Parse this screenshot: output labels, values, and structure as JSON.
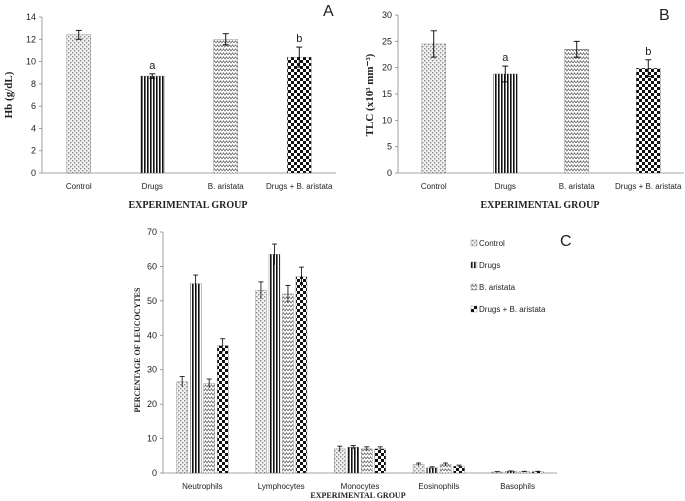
{
  "chart_data": [
    {
      "id": "A",
      "type": "bar",
      "panel_label": "A",
      "ylabel": "Hb (g/dL)",
      "xlabel": "EXPERIMENTAL GROUP",
      "ylim": [
        0,
        14
      ],
      "ytick_step": 2,
      "categories": [
        "Control",
        "Drugs",
        "B. aristata",
        "Drugs + B. aristata"
      ],
      "values": [
        12.4,
        8.7,
        12.0,
        10.4
      ],
      "errors": [
        0.4,
        0.2,
        0.5,
        0.9
      ],
      "significance": [
        "",
        "a",
        "",
        "b"
      ]
    },
    {
      "id": "B",
      "type": "bar",
      "panel_label": "B",
      "ylabel": "TLC (x10³ mm⁻³)",
      "xlabel": "EXPERIMENTAL GROUP",
      "ylim": [
        0,
        30
      ],
      "ytick_step": 5,
      "categories": [
        "Control",
        "Drugs",
        "B. aristata",
        "Drugs + B. aristata"
      ],
      "values": [
        24.5,
        18.8,
        23.5,
        19.9
      ],
      "errors": [
        2.5,
        1.5,
        1.5,
        1.6
      ],
      "significance": [
        "",
        "a",
        "",
        "b"
      ]
    },
    {
      "id": "C",
      "type": "bar",
      "panel_label": "C",
      "ylabel": "PERCENTAGE OF LEUCOCYTES",
      "xlabel": "EXPERIMENTAL GROUP",
      "ylim": [
        0,
        70
      ],
      "ytick_step": 10,
      "categories": [
        "Neutrophils",
        "Lymphocytes",
        "Monocytes",
        "Eosinophils",
        "Basophils"
      ],
      "legend_position": "top-right",
      "series": [
        {
          "name": "Control",
          "values": [
            26.5,
            53.0,
            7.0,
            2.5,
            0.3
          ],
          "errors": [
            1.5,
            2.5,
            0.8,
            0.4,
            0.1
          ]
        },
        {
          "name": "Drugs",
          "values": [
            55.0,
            63.5,
            7.5,
            1.5,
            0.5
          ],
          "errors": [
            2.5,
            3.0,
            0.5,
            0.3,
            0.1
          ]
        },
        {
          "name": "B. aristata",
          "values": [
            26.0,
            52.0,
            7.0,
            2.5,
            0.4
          ],
          "errors": [
            1.3,
            2.5,
            0.6,
            0.4,
            0.1
          ]
        },
        {
          "name": "Drugs + B. aristata",
          "values": [
            37.0,
            57.0,
            7.0,
            2.0,
            0.4
          ],
          "errors": [
            2.0,
            2.8,
            0.6,
            0.3,
            0.1
          ]
        }
      ]
    }
  ]
}
